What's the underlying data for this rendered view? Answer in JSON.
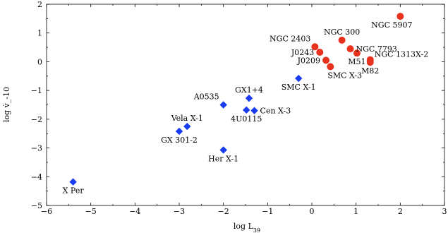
{
  "chart_data": {
    "type": "scatter",
    "xlabel": "log L",
    "xlabel_sub": "39",
    "ylabel": "log v̇_-10",
    "xlim": [
      -6,
      3
    ],
    "ylim": [
      -5,
      2
    ],
    "xticks": [
      -6,
      -5,
      -4,
      -3,
      -2,
      -1,
      0,
      1,
      2,
      3
    ],
    "yticks": [
      -5,
      -4,
      -3,
      -2,
      -1,
      0,
      1,
      2
    ],
    "xtick_labels": [
      "−6",
      "−5",
      "−4",
      "−3",
      "−2",
      "−1",
      "0",
      "1",
      "2",
      "3"
    ],
    "ytick_labels": [
      "−5",
      "−4",
      "−3",
      "−2",
      "−1",
      "0",
      "1",
      "2"
    ],
    "grid": false,
    "series": [
      {
        "marker": "diamond",
        "color": "#1a3cf0",
        "points": [
          {
            "label": "X Per",
            "x": -5.4,
            "y": -4.18,
            "label_pos": "below"
          },
          {
            "label": "GX 301-2",
            "x": -3.0,
            "y": -2.42,
            "label_pos": "below"
          },
          {
            "label": "Vela X-1",
            "x": -2.82,
            "y": -2.25,
            "label_pos": "above"
          },
          {
            "label": "Her X-1",
            "x": -2.0,
            "y": -3.07,
            "label_pos": "below"
          },
          {
            "label": "A0535",
            "x": -2.0,
            "y": -1.5,
            "label_pos": "above-left"
          },
          {
            "label": "4U0115",
            "x": -1.48,
            "y": -1.68,
            "label_pos": "below"
          },
          {
            "label": "GX1+4",
            "x": -1.42,
            "y": -1.27,
            "label_pos": "above"
          },
          {
            "label": "Cen X-3",
            "x": -1.3,
            "y": -1.7,
            "label_pos": "right"
          },
          {
            "label": "SMC X-1",
            "x": -0.3,
            "y": -0.58,
            "label_pos": "below"
          }
        ]
      },
      {
        "marker": "circle",
        "color": "#e8321e",
        "points": [
          {
            "label": "NGC 2403",
            "x": 0.07,
            "y": 0.52,
            "label_pos": "above-left"
          },
          {
            "label": "J0243",
            "x": 0.18,
            "y": 0.33,
            "label_pos": "left"
          },
          {
            "label": "J0209",
            "x": 0.32,
            "y": 0.05,
            "label_pos": "left"
          },
          {
            "label": "SMC X-3",
            "x": 0.42,
            "y": -0.17,
            "label_pos": "below-right"
          },
          {
            "label": "NGC 300",
            "x": 0.68,
            "y": 0.75,
            "label_pos": "above"
          },
          {
            "label": "NGC 7793",
            "x": 0.87,
            "y": 0.45,
            "label_pos": "right"
          },
          {
            "label": "M51",
            "x": 1.02,
            "y": 0.3,
            "label_pos": "below"
          },
          {
            "label": "NGC 1313X-2",
            "x": 1.32,
            "y": 0.07,
            "label_pos": "above-right"
          },
          {
            "label": "M82",
            "x": 1.32,
            "y": -0.02,
            "label_pos": "below"
          },
          {
            "label": "NGC 5907",
            "x": 2.0,
            "y": 1.58,
            "label_pos": "below-left"
          }
        ]
      }
    ]
  }
}
